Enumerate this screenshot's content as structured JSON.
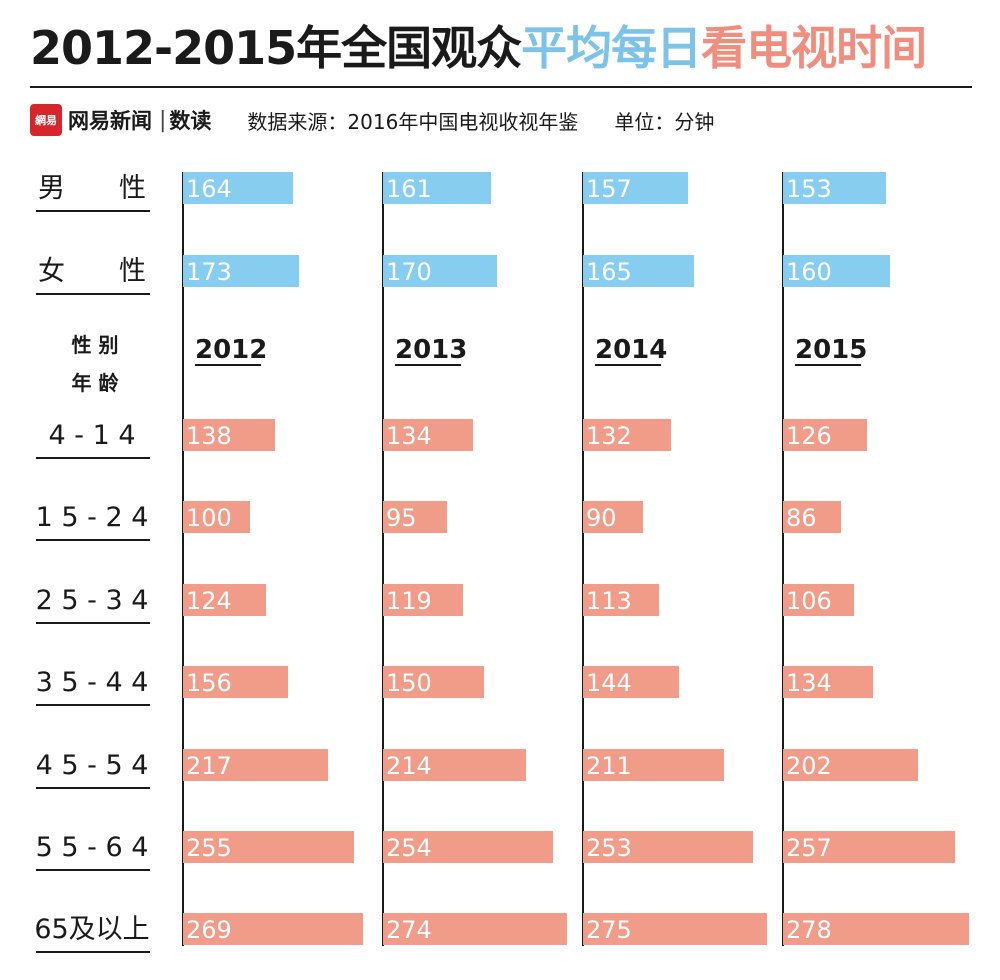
{
  "header": {
    "title_part1": "2012-2015年全国观众",
    "title_part2": "平均每日",
    "title_part3": "看电视时间",
    "logo_text": "網易",
    "brand_name": "网易新闻",
    "brand_separator": "|",
    "brand_sub": "数读",
    "source": "数据来源：2016年中国电视收视年鉴",
    "unit": "单位：分钟"
  },
  "colors": {
    "gender_bar": "#87cdf0",
    "age_bar": "#f19b89",
    "title_blue": "#7dc3e8",
    "title_red": "#ef8e7e",
    "logo_red": "#d6262b"
  },
  "chart_data": {
    "type": "bar",
    "orientation": "horizontal",
    "years": [
      "2012",
      "2013",
      "2014",
      "2015"
    ],
    "header_label_top": "性 别",
    "header_label_bottom": "年 龄",
    "gender_rows": [
      {
        "label": "男　　性",
        "values": [
          164,
          161,
          157,
          153
        ]
      },
      {
        "label": "女　　性",
        "values": [
          173,
          170,
          165,
          160
        ]
      }
    ],
    "age_rows": [
      {
        "label": "4 - 1 4",
        "values": [
          138,
          134,
          132,
          126
        ]
      },
      {
        "label": "1 5 - 2 4",
        "values": [
          100,
          95,
          90,
          86
        ]
      },
      {
        "label": "2 5 - 3 4",
        "values": [
          124,
          119,
          113,
          106
        ]
      },
      {
        "label": "3 5 - 4 4",
        "values": [
          156,
          150,
          144,
          134
        ]
      },
      {
        "label": "4 5 - 5 4",
        "values": [
          217,
          214,
          211,
          202
        ]
      },
      {
        "label": "5 5 - 6 4",
        "values": [
          255,
          254,
          253,
          257
        ]
      },
      {
        "label": "65及以上",
        "values": [
          269,
          274,
          275,
          278
        ]
      }
    ]
  }
}
